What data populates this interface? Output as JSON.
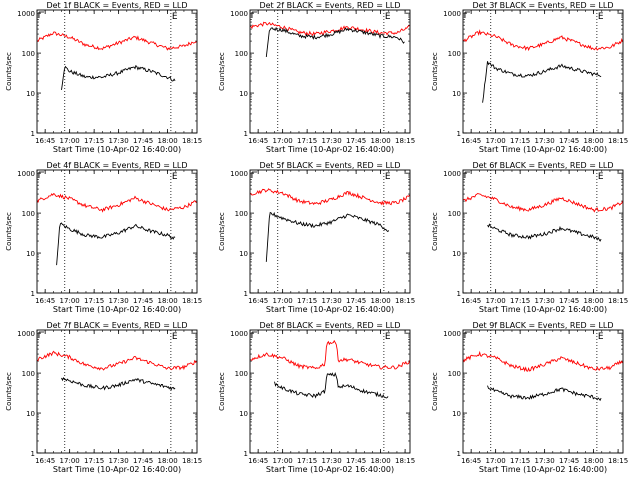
{
  "chart_data": [
    {
      "type": "line",
      "title": "Det 1f BLACK = Events, RED = LLD",
      "xlabel": "Start Time (10-Apr-02 16:40:00)",
      "ylabel": "Counts/sec",
      "xlim": [
        "16:40",
        "18:18"
      ],
      "ylim": [
        1,
        1200
      ],
      "yscale": "log",
      "xticks": [
        "16:45",
        "17:00",
        "17:15",
        "17:30",
        "17:45",
        "18:00",
        "18:15"
      ],
      "yticks": [
        "1",
        "10",
        "100",
        "1000"
      ],
      "markers": [
        {
          "time": "16:57",
          "label": ""
        },
        {
          "time": "18:02",
          "label": "E"
        }
      ],
      "series": [
        {
          "name": "LLD",
          "color": "#ff0000",
          "x": [
            "16:40",
            "16:50",
            "17:00",
            "17:10",
            "17:20",
            "17:30",
            "17:40",
            "17:50",
            "18:00",
            "18:10",
            "18:18"
          ],
          "values": [
            200,
            320,
            250,
            160,
            130,
            180,
            250,
            180,
            130,
            150,
            210
          ]
        },
        {
          "name": "Events",
          "color": "#000000",
          "x": [
            "16:55",
            "16:57",
            "17:00",
            "17:10",
            "17:20",
            "17:30",
            "17:40",
            "17:50",
            "18:00",
            "18:05"
          ],
          "values": [
            12,
            45,
            35,
            25,
            25,
            32,
            45,
            35,
            25,
            20
          ]
        }
      ]
    },
    {
      "type": "line",
      "title": "Det 2f BLACK = Events, RED = LLD",
      "xlabel": "Start Time (10-Apr-02 16:40:00)",
      "ylabel": "Counts/sec",
      "xlim": [
        "16:40",
        "18:18"
      ],
      "ylim": [
        1,
        1200
      ],
      "yscale": "log",
      "xticks": [
        "16:45",
        "17:00",
        "17:15",
        "17:30",
        "17:45",
        "18:00",
        "18:15"
      ],
      "yticks": [
        "1",
        "10",
        "100",
        "1000"
      ],
      "markers": [
        {
          "time": "16:57",
          "label": ""
        },
        {
          "time": "18:02",
          "label": "E"
        }
      ],
      "series": [
        {
          "name": "LLD",
          "color": "#ff0000",
          "x": [
            "16:40",
            "16:50",
            "17:00",
            "17:10",
            "17:20",
            "17:30",
            "17:40",
            "17:50",
            "18:00",
            "18:10",
            "18:18"
          ],
          "values": [
            450,
            550,
            450,
            330,
            300,
            360,
            450,
            380,
            320,
            320,
            450
          ]
        },
        {
          "name": "Events",
          "color": "#000000",
          "x": [
            "16:50",
            "16:52",
            "17:00",
            "17:10",
            "17:20",
            "17:30",
            "17:40",
            "17:50",
            "18:00",
            "18:10",
            "18:15"
          ],
          "values": [
            80,
            420,
            380,
            270,
            250,
            300,
            400,
            330,
            270,
            250,
            180
          ]
        }
      ]
    },
    {
      "type": "line",
      "title": "Det 3f BLACK = Events, RED = LLD",
      "xlabel": "Start Time (10-Apr-02 16:40:00)",
      "ylabel": "Counts/sec",
      "xlim": [
        "16:40",
        "18:18"
      ],
      "ylim": [
        1,
        1200
      ],
      "yscale": "log",
      "xticks": [
        "16:45",
        "17:00",
        "17:15",
        "17:30",
        "17:45",
        "18:00",
        "18:15"
      ],
      "yticks": [
        "1",
        "10",
        "100",
        "1000"
      ],
      "markers": [
        {
          "time": "16:57",
          "label": ""
        },
        {
          "time": "18:02",
          "label": "E"
        }
      ],
      "series": [
        {
          "name": "LLD",
          "color": "#ff0000",
          "x": [
            "16:40",
            "16:50",
            "17:00",
            "17:10",
            "17:20",
            "17:30",
            "17:40",
            "17:50",
            "18:00",
            "18:10",
            "18:18"
          ],
          "values": [
            200,
            330,
            260,
            160,
            130,
            170,
            250,
            180,
            130,
            140,
            210
          ]
        },
        {
          "name": "Events",
          "color": "#000000",
          "x": [
            "16:52",
            "16:55",
            "17:00",
            "17:10",
            "17:20",
            "17:30",
            "17:40",
            "17:50",
            "18:00",
            "18:05"
          ],
          "values": [
            6,
            60,
            42,
            30,
            27,
            35,
            48,
            38,
            30,
            28
          ]
        }
      ]
    },
    {
      "type": "line",
      "title": "Det 4f BLACK = Events, RED = LLD",
      "xlabel": "Start Time (10-Apr-02 16:40:00)",
      "ylabel": "Counts/sec",
      "xlim": [
        "16:40",
        "18:18"
      ],
      "ylim": [
        1,
        1200
      ],
      "yscale": "log",
      "xticks": [
        "16:45",
        "17:00",
        "17:15",
        "17:30",
        "17:45",
        "18:00",
        "18:15"
      ],
      "yticks": [
        "1",
        "10",
        "100",
        "1000"
      ],
      "markers": [
        {
          "time": "16:57",
          "label": ""
        },
        {
          "time": "18:02",
          "label": "E"
        }
      ],
      "series": [
        {
          "name": "LLD",
          "color": "#ff0000",
          "x": [
            "16:40",
            "16:50",
            "17:00",
            "17:10",
            "17:20",
            "17:30",
            "17:40",
            "17:50",
            "18:00",
            "18:10",
            "18:18"
          ],
          "values": [
            200,
            300,
            230,
            150,
            120,
            160,
            240,
            170,
            120,
            140,
            200
          ]
        },
        {
          "name": "Events",
          "color": "#000000",
          "x": [
            "16:52",
            "16:54",
            "17:00",
            "17:10",
            "17:20",
            "17:30",
            "17:40",
            "17:50",
            "18:00",
            "18:05"
          ],
          "values": [
            5,
            55,
            40,
            28,
            25,
            32,
            48,
            35,
            28,
            22
          ]
        }
      ]
    },
    {
      "type": "line",
      "title": "Det 5f BLACK = Events, RED = LLD",
      "xlabel": "Start Time (10-Apr-02 16:40:00)",
      "ylabel": "Counts/sec",
      "xlim": [
        "16:40",
        "18:18"
      ],
      "ylim": [
        1,
        1200
      ],
      "yscale": "log",
      "xticks": [
        "16:45",
        "17:00",
        "17:15",
        "17:30",
        "17:45",
        "18:00",
        "18:15"
      ],
      "yticks": [
        "1",
        "10",
        "100",
        "1000"
      ],
      "markers": [
        {
          "time": "16:57",
          "label": ""
        },
        {
          "time": "18:02",
          "label": "E"
        }
      ],
      "series": [
        {
          "name": "LLD",
          "color": "#ff0000",
          "x": [
            "16:40",
            "16:50",
            "17:00",
            "17:10",
            "17:20",
            "17:30",
            "17:40",
            "17:50",
            "18:00",
            "18:10",
            "18:18"
          ],
          "values": [
            300,
            380,
            320,
            200,
            170,
            220,
            330,
            240,
            180,
            180,
            260
          ]
        },
        {
          "name": "Events",
          "color": "#000000",
          "x": [
            "16:50",
            "16:52",
            "17:00",
            "17:10",
            "17:20",
            "17:30",
            "17:40",
            "17:50",
            "18:00",
            "18:05"
          ],
          "values": [
            6,
            100,
            75,
            55,
            48,
            60,
            90,
            68,
            50,
            35
          ]
        }
      ]
    },
    {
      "type": "line",
      "title": "Det 6f BLACK = Events, RED = LLD",
      "xlabel": "Start Time (10-Apr-02 16:40:00)",
      "ylabel": "Counts/sec",
      "xlim": [
        "16:40",
        "18:18"
      ],
      "ylim": [
        1,
        1200
      ],
      "yscale": "log",
      "xticks": [
        "16:45",
        "17:00",
        "17:15",
        "17:30",
        "17:45",
        "18:00",
        "18:15"
      ],
      "yticks": [
        "1",
        "10",
        "100",
        "1000"
      ],
      "markers": [
        {
          "time": "16:57",
          "label": ""
        },
        {
          "time": "18:02",
          "label": "E"
        }
      ],
      "series": [
        {
          "name": "LLD",
          "color": "#ff0000",
          "x": [
            "16:40",
            "16:50",
            "17:00",
            "17:10",
            "17:20",
            "17:30",
            "17:40",
            "17:50",
            "18:00",
            "18:10",
            "18:18"
          ],
          "values": [
            200,
            290,
            220,
            140,
            120,
            160,
            240,
            170,
            120,
            130,
            190
          ]
        },
        {
          "name": "Events",
          "color": "#000000",
          "x": [
            "16:55",
            "17:00",
            "17:10",
            "17:20",
            "17:30",
            "17:40",
            "17:50",
            "18:00",
            "18:05"
          ],
          "values": [
            50,
            40,
            28,
            25,
            30,
            42,
            32,
            25,
            20
          ]
        }
      ]
    },
    {
      "type": "line",
      "title": "Det 7f BLACK = Events, RED = LLD",
      "xlabel": "Start Time (10-Apr-02 16:40:00)",
      "ylabel": "Counts/sec",
      "xlim": [
        "16:40",
        "18:18"
      ],
      "ylim": [
        1,
        1200
      ],
      "yscale": "log",
      "xticks": [
        "16:45",
        "17:00",
        "17:15",
        "17:30",
        "17:45",
        "18:00",
        "18:15"
      ],
      "yticks": [
        "1",
        "10",
        "100",
        "1000"
      ],
      "markers": [
        {
          "time": "16:57",
          "label": ""
        },
        {
          "time": "18:02",
          "label": "E"
        }
      ],
      "series": [
        {
          "name": "LLD",
          "color": "#ff0000",
          "x": [
            "16:40",
            "16:50",
            "17:00",
            "17:10",
            "17:20",
            "17:30",
            "17:40",
            "17:50",
            "18:00",
            "18:10",
            "18:18"
          ],
          "values": [
            220,
            320,
            250,
            160,
            130,
            170,
            240,
            180,
            130,
            140,
            200
          ]
        },
        {
          "name": "Events",
          "color": "#000000",
          "x": [
            "16:55",
            "17:00",
            "17:10",
            "17:20",
            "17:30",
            "17:40",
            "17:50",
            "18:00",
            "18:05"
          ],
          "values": [
            75,
            65,
            48,
            42,
            50,
            70,
            55,
            45,
            40
          ]
        }
      ]
    },
    {
      "type": "line",
      "title": "Det 8f BLACK = Events, RED = LLD",
      "xlabel": "Start Time (10-Apr-02 16:40:00)",
      "ylabel": "Counts/sec",
      "xlim": [
        "16:40",
        "18:18"
      ],
      "ylim": [
        1,
        1200
      ],
      "yscale": "log",
      "xticks": [
        "16:45",
        "17:00",
        "17:15",
        "17:30",
        "17:45",
        "18:00",
        "18:15"
      ],
      "yticks": [
        "1",
        "10",
        "100",
        "1000"
      ],
      "markers": [
        {
          "time": "16:57",
          "label": ""
        },
        {
          "time": "18:02",
          "label": "E"
        }
      ],
      "series": [
        {
          "name": "LLD",
          "color": "#ff0000",
          "x": [
            "16:40",
            "16:50",
            "17:00",
            "17:10",
            "17:20",
            "17:26",
            "17:27",
            "17:33",
            "17:34",
            "17:40",
            "17:50",
            "18:00",
            "18:10",
            "18:18"
          ],
          "values": [
            220,
            300,
            240,
            150,
            130,
            170,
            580,
            580,
            210,
            220,
            170,
            140,
            140,
            200
          ]
        },
        {
          "name": "Events",
          "color": "#000000",
          "x": [
            "16:55",
            "17:00",
            "17:10",
            "17:20",
            "17:26",
            "17:27",
            "17:33",
            "17:34",
            "17:40",
            "17:50",
            "18:00",
            "18:05"
          ],
          "values": [
            55,
            42,
            30,
            27,
            35,
            90,
            90,
            45,
            48,
            35,
            28,
            25
          ]
        }
      ]
    },
    {
      "type": "line",
      "title": "Det 9f BLACK = Events, RED = LLD",
      "xlabel": "Start Time (10-Apr-02 16:40:00)",
      "ylabel": "Counts/sec",
      "xlim": [
        "16:40",
        "18:18"
      ],
      "ylim": [
        1,
        1200
      ],
      "yscale": "log",
      "xticks": [
        "16:45",
        "17:00",
        "17:15",
        "17:30",
        "17:45",
        "18:00",
        "18:15"
      ],
      "yticks": [
        "1",
        "10",
        "100",
        "1000"
      ],
      "markers": [
        {
          "time": "16:57",
          "label": ""
        },
        {
          "time": "18:02",
          "label": "E"
        }
      ],
      "series": [
        {
          "name": "LLD",
          "color": "#ff0000",
          "x": [
            "16:40",
            "16:50",
            "17:00",
            "17:10",
            "17:20",
            "17:30",
            "17:40",
            "17:50",
            "18:00",
            "18:10",
            "18:18"
          ],
          "values": [
            210,
            300,
            240,
            150,
            120,
            165,
            240,
            175,
            125,
            135,
            200
          ]
        },
        {
          "name": "Events",
          "color": "#000000",
          "x": [
            "16:55",
            "17:00",
            "17:10",
            "17:20",
            "17:30",
            "17:40",
            "17:50",
            "18:00",
            "18:05"
          ],
          "values": [
            45,
            35,
            26,
            24,
            30,
            40,
            30,
            25,
            22
          ]
        }
      ]
    }
  ]
}
